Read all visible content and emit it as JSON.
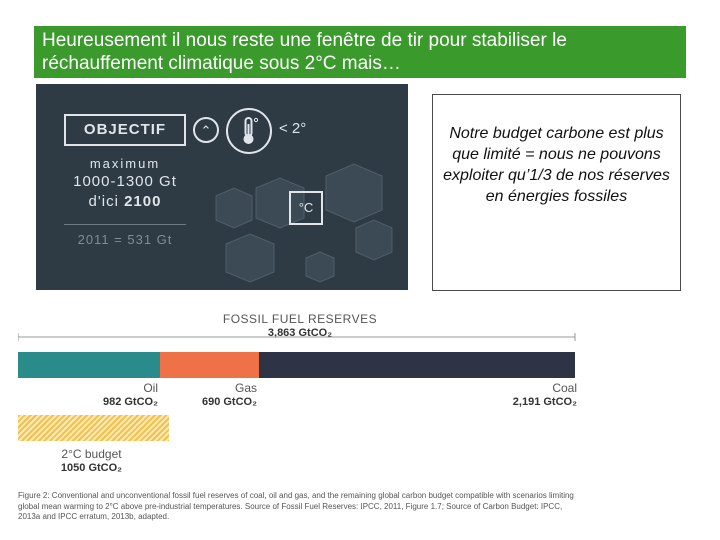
{
  "slide": {
    "title_line1": "Heureusement il nous reste une fenêtre de tir pour stabiliser le",
    "title_line2": "réchauffement climatique sous 2°C mais…",
    "title_bg": "#3b9a2c"
  },
  "infographic": {
    "objective_label": "OBJECTIF",
    "limit_text": "< 2°",
    "max_label": "maximum",
    "range": "1000-1300 Gt",
    "date_prefix": "d'ici",
    "date_year": "2100",
    "past_emissions": "2011 = 531 Gt",
    "degree_label": "°C",
    "icons": [
      "chevron-up-icon",
      "thermometer-icon",
      "cube-icon"
    ],
    "bg_color": "#2e3b45"
  },
  "note": {
    "text": "Notre budget carbone est plus que limité = nous ne pouvons exploiter qu’1/3 de nos réserves en énergies fossiles"
  },
  "chart_data": {
    "type": "bar",
    "title": "FOSSIL FUEL RESERVES",
    "total_label": "3,863 GtCO₂",
    "total": 3863,
    "unit": "GtCO₂",
    "series": [
      {
        "name": "Oil",
        "value": 982,
        "label": "982 GtCO₂",
        "color": "#2a8b8b"
      },
      {
        "name": "Gas",
        "value": 690,
        "label": "690 GtCO₂",
        "color": "#ef7147"
      },
      {
        "name": "Coal",
        "value": 2191,
        "label": "2,191 GtCO₂",
        "color": "#2e3446"
      }
    ],
    "budget": {
      "name": "2°C budget",
      "value": 1050,
      "label": "1050 GtCO₂",
      "color": "#f2c14e"
    }
  },
  "caption": {
    "text": "Figure 2: Conventional and unconventional fossil fuel reserves of coal, oil and gas, and the remaining global carbon budget compatible with scenarios limiting global mean warming to 2°C above pre-industrial temperatures. Source of Fossil Fuel Reserves: IPCC, 2011, Figure 1.7; Source of Carbon Budget: IPCC, 2013a and IPCC erratum, 2013b, adapted."
  }
}
